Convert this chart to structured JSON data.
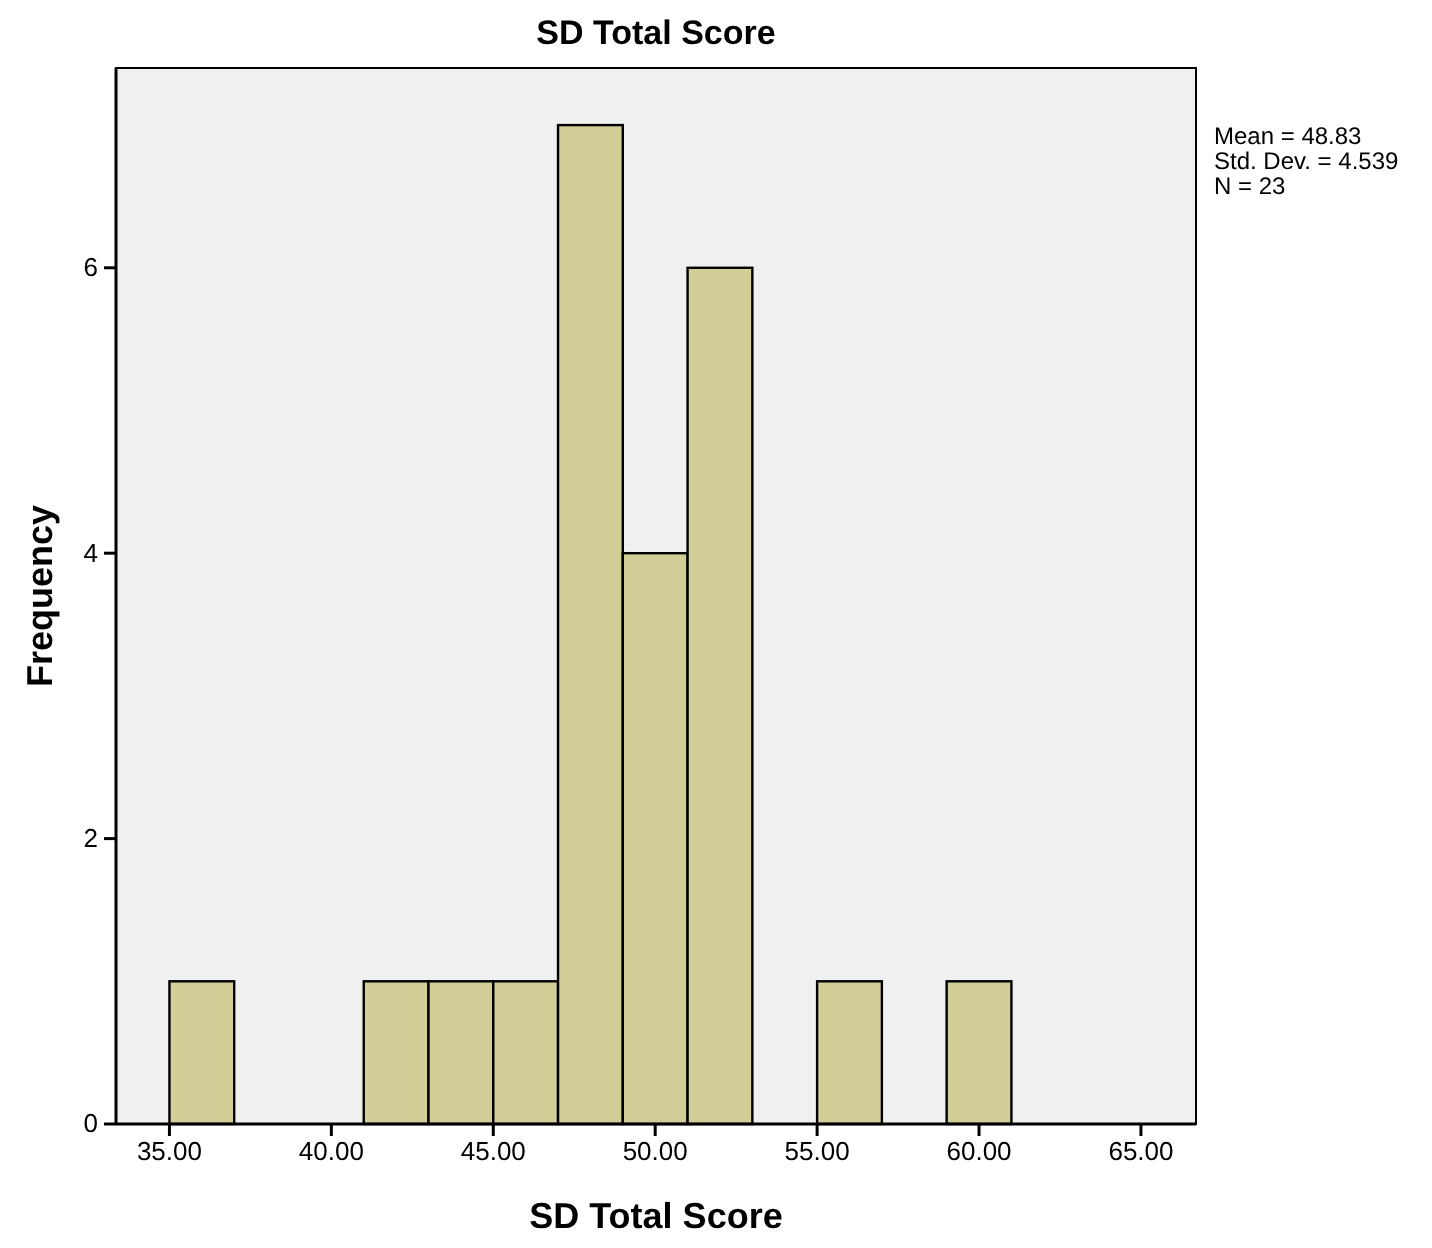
{
  "chart_data": {
    "type": "histogram",
    "title": "SD Total Score",
    "xlabel": "SD Total Score",
    "ylabel": "Frequency",
    "bins": [
      35,
      37,
      39,
      41,
      43,
      45,
      47,
      49,
      51,
      53,
      55,
      57,
      59,
      61
    ],
    "values": [
      1,
      0,
      0,
      1,
      1,
      1,
      7,
      4,
      6,
      0,
      1,
      0,
      1
    ],
    "color": "#d3ce97",
    "xlim": [
      33.35,
      66.7
    ],
    "xticks": [
      {
        "value": 35,
        "label": "35.00"
      },
      {
        "value": 40,
        "label": "40.00"
      },
      {
        "value": 45,
        "label": "45.00"
      },
      {
        "value": 50,
        "label": "50.00"
      },
      {
        "value": 55,
        "label": "55.00"
      },
      {
        "value": 60,
        "label": "60.00"
      },
      {
        "value": 65,
        "label": "65.00"
      }
    ],
    "ylim": [
      0,
      7.4
    ],
    "yticks": [
      0,
      2,
      4,
      6
    ],
    "grid": false,
    "annotations": [
      "Mean = 48.83",
      "Std. Dev. = 4.539",
      "N = 23"
    ]
  }
}
